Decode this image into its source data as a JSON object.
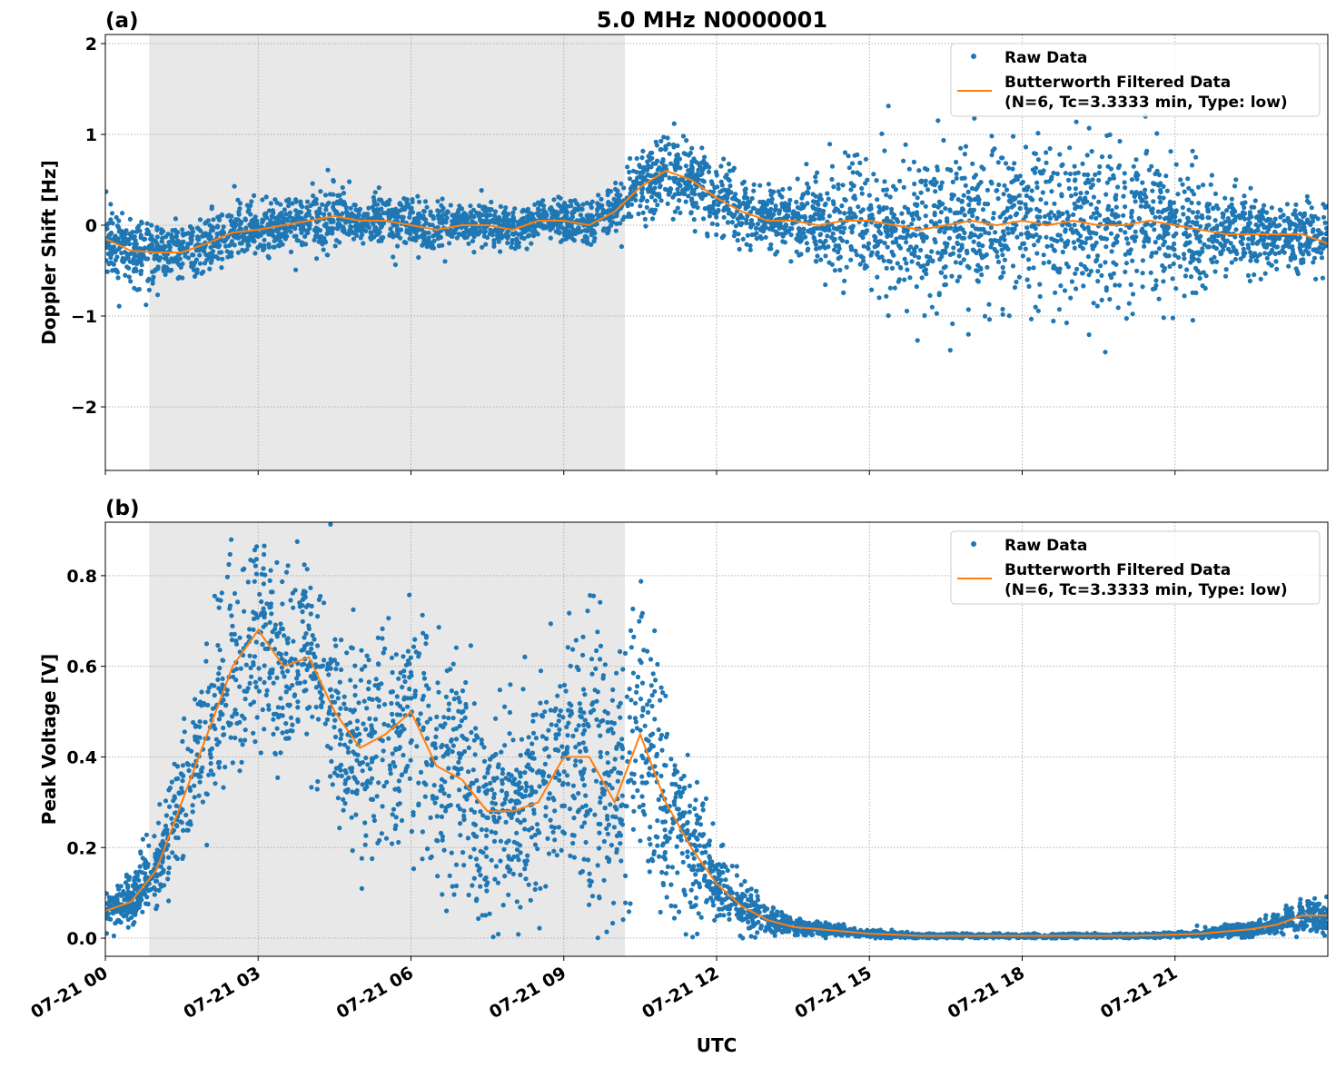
{
  "title": "5.0 MHz N0000001",
  "xlabel": "UTC",
  "colors": {
    "raw": "#1f77b4",
    "filtered": "#ff7f0e",
    "shade": "#e8e8e8",
    "grid": "#b0b0b0"
  },
  "x_ticks": [
    {
      "hour": 0,
      "label": "07-21 00"
    },
    {
      "hour": 3,
      "label": "07-21 03"
    },
    {
      "hour": 6,
      "label": "07-21 06"
    },
    {
      "hour": 9,
      "label": "07-21 09"
    },
    {
      "hour": 12,
      "label": "07-21 12"
    },
    {
      "hour": 15,
      "label": "07-21 15"
    },
    {
      "hour": 18,
      "label": "07-21 18"
    },
    {
      "hour": 21,
      "label": "07-21 21"
    }
  ],
  "legend": {
    "raw": "Raw Data",
    "filtered_line1": "Butterworth Filtered Data",
    "filtered_line2": "(N=6, Tc=3.3333 min, Type: low)",
    "placement": "top-right"
  },
  "chart_data": [
    {
      "panel_label": "(a)",
      "type": "scatter+line",
      "ylabel": "Doppler Shift [Hz]",
      "xlim_hours": [
        0,
        24
      ],
      "ylim": [
        -2.7,
        2.1
      ],
      "y_ticks": [
        {
          "v": 2,
          "label": "2"
        },
        {
          "v": 1,
          "label": "1"
        },
        {
          "v": 0,
          "label": "0"
        },
        {
          "v": -1,
          "label": "−1"
        },
        {
          "v": -2,
          "label": "−2"
        }
      ],
      "grid": true,
      "shaded_hours": [
        0.86,
        10.2
      ],
      "hours": [
        0,
        0.5,
        1,
        1.5,
        2,
        2.5,
        3,
        3.5,
        4,
        4.5,
        5,
        5.5,
        6,
        6.5,
        7,
        7.5,
        8,
        8.5,
        9,
        9.5,
        10,
        10.5,
        11,
        11.5,
        12,
        12.5,
        13,
        13.5,
        14,
        14.5,
        15,
        15.5,
        16,
        16.5,
        17,
        17.5,
        18,
        18.5,
        19,
        19.5,
        20,
        20.5,
        21,
        21.5,
        22,
        22.5,
        23,
        23.5,
        24
      ],
      "filtered": [
        -0.15,
        -0.28,
        -0.3,
        -0.3,
        -0.2,
        -0.08,
        -0.05,
        0,
        0.05,
        0.1,
        0.05,
        0.05,
        0,
        -0.05,
        0,
        0,
        -0.05,
        0.05,
        0.05,
        0,
        0.15,
        0.42,
        0.6,
        0.5,
        0.3,
        0.15,
        0.05,
        0.05,
        0,
        0.05,
        0.05,
        0,
        -0.05,
        0,
        0.05,
        0,
        0.05,
        0,
        0.05,
        0,
        0,
        0.05,
        0,
        -0.05,
        -0.1,
        -0.1,
        -0.1,
        -0.1,
        -0.2
      ],
      "raw_spread": [
        0.35,
        0.35,
        0.3,
        0.3,
        0.3,
        0.3,
        0.3,
        0.3,
        0.3,
        0.3,
        0.25,
        0.25,
        0.25,
        0.25,
        0.25,
        0.2,
        0.2,
        0.2,
        0.2,
        0.2,
        0.25,
        0.35,
        0.4,
        0.35,
        0.35,
        0.3,
        0.3,
        0.35,
        0.4,
        0.5,
        0.55,
        0.65,
        0.75,
        0.75,
        0.8,
        0.8,
        0.8,
        0.8,
        0.85,
        0.85,
        0.8,
        0.75,
        0.7,
        0.55,
        0.4,
        0.35,
        0.35,
        0.35,
        0.35
      ]
    },
    {
      "panel_label": "(b)",
      "type": "scatter+line",
      "ylabel": "Peak Voltage [V]",
      "xlim_hours": [
        0,
        24
      ],
      "ylim": [
        -0.04,
        0.918
      ],
      "y_ticks": [
        {
          "v": 0,
          "label": "0.0"
        },
        {
          "v": 0.2,
          "label": "0.2"
        },
        {
          "v": 0.4,
          "label": "0.4"
        },
        {
          "v": 0.6,
          "label": "0.6"
        },
        {
          "v": 0.8,
          "label": "0.8"
        }
      ],
      "grid": true,
      "shaded_hours": [
        0.86,
        10.2
      ],
      "hours": [
        0,
        0.5,
        1,
        1.5,
        2,
        2.5,
        3,
        3.5,
        4,
        4.5,
        5,
        5.5,
        6,
        6.5,
        7,
        7.5,
        8,
        8.5,
        9,
        9.5,
        10,
        10.5,
        11,
        11.5,
        12,
        12.5,
        13,
        13.5,
        14,
        14.5,
        15,
        15.5,
        16,
        16.5,
        17,
        17.5,
        18,
        18.5,
        19,
        19.5,
        20,
        20.5,
        21,
        21.5,
        22,
        22.5,
        23,
        23.5,
        24
      ],
      "filtered": [
        0.06,
        0.08,
        0.15,
        0.3,
        0.45,
        0.6,
        0.68,
        0.6,
        0.62,
        0.5,
        0.42,
        0.45,
        0.5,
        0.38,
        0.35,
        0.28,
        0.28,
        0.3,
        0.4,
        0.4,
        0.3,
        0.45,
        0.3,
        0.2,
        0.12,
        0.07,
        0.04,
        0.025,
        0.02,
        0.015,
        0.01,
        0.008,
        0.005,
        0.005,
        0.005,
        0.005,
        0.005,
        0.005,
        0.005,
        0.005,
        0.005,
        0.006,
        0.008,
        0.01,
        0.015,
        0.02,
        0.03,
        0.05,
        0.05
      ],
      "raw_spread": [
        0.04,
        0.05,
        0.08,
        0.12,
        0.18,
        0.22,
        0.22,
        0.22,
        0.2,
        0.2,
        0.2,
        0.22,
        0.25,
        0.25,
        0.25,
        0.2,
        0.18,
        0.2,
        0.25,
        0.28,
        0.25,
        0.28,
        0.22,
        0.15,
        0.08,
        0.05,
        0.03,
        0.02,
        0.015,
        0.01,
        0.008,
        0.006,
        0.004,
        0.004,
        0.004,
        0.004,
        0.004,
        0.004,
        0.004,
        0.004,
        0.004,
        0.004,
        0.005,
        0.008,
        0.012,
        0.015,
        0.02,
        0.03,
        0.04
      ]
    }
  ]
}
